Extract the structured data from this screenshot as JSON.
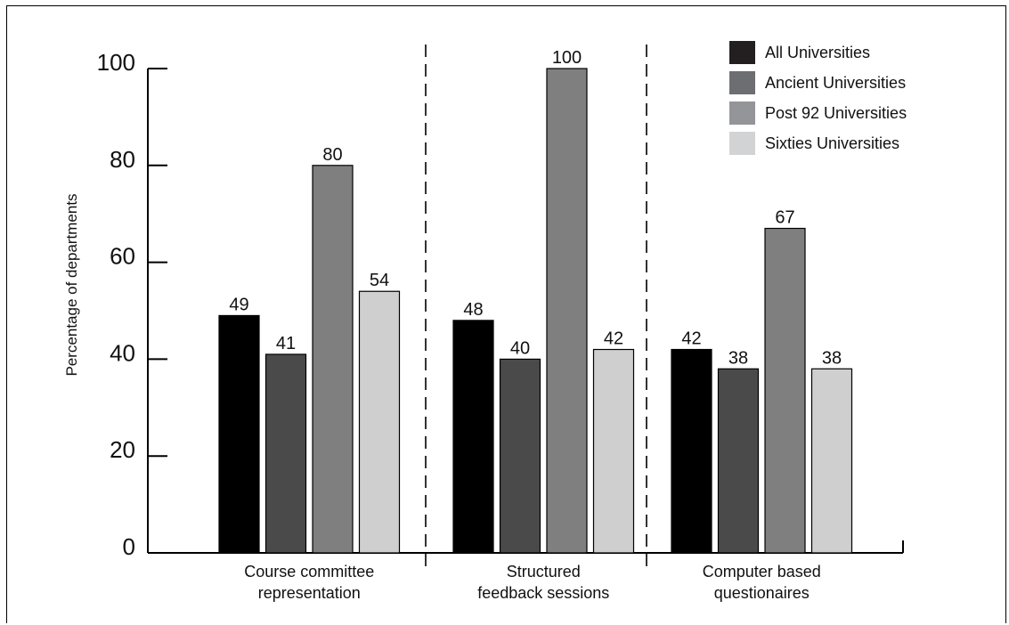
{
  "chart_data": {
    "type": "bar",
    "title": "",
    "xlabel": "",
    "ylabel": "Percentage of departments",
    "ylim": [
      0,
      100
    ],
    "yticks": [
      0,
      20,
      40,
      60,
      80,
      100
    ],
    "grid": false,
    "legend_position": "top-right",
    "categories": [
      [
        "Course committee",
        "representation"
      ],
      [
        "Structured",
        "feedback sessions"
      ],
      [
        "Computer based",
        "questionaires"
      ]
    ],
    "series": [
      {
        "name": "All Universities",
        "color": "#000000",
        "legend_color": "#231f20",
        "values": [
          49,
          48,
          42
        ]
      },
      {
        "name": "Ancient Universities",
        "color": "#4a4a4a",
        "legend_color": "#6d6e71",
        "values": [
          41,
          40,
          38
        ]
      },
      {
        "name": "Post 92 Universities",
        "color": "#7f7f7f",
        "legend_color": "#939598",
        "values": [
          80,
          100,
          67
        ]
      },
      {
        "name": "Sixties Universities",
        "color": "#cfcfcf",
        "legend_color": "#d1d3d4",
        "values": [
          54,
          42,
          38
        ]
      }
    ],
    "group_separators": "dashed"
  }
}
